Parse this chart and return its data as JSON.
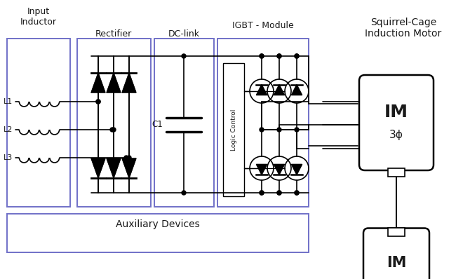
{
  "background_color": "#ffffff",
  "box_color": "#7070c8",
  "line_color": "#000000",
  "text_color": "#1a1a1a",
  "labels": {
    "input_inductor": "Input\nInductor",
    "rectifier": "Rectifier",
    "dc_link": "DC-link",
    "igbt_module": "IGBT - Module",
    "aux_devices": "Auxiliary Devices",
    "squirrel_cage": "Squirrel-Cage\nInduction Motor",
    "L1": "L1",
    "L2": "L2",
    "L3": "L3",
    "C1": "C1",
    "logic_control": "Logic Control",
    "IM_top": "IM",
    "IM_3phase": "3ϕ",
    "IM_bottom": "IM"
  },
  "fig_w": 6.6,
  "fig_h": 3.98,
  "dpi": 100
}
